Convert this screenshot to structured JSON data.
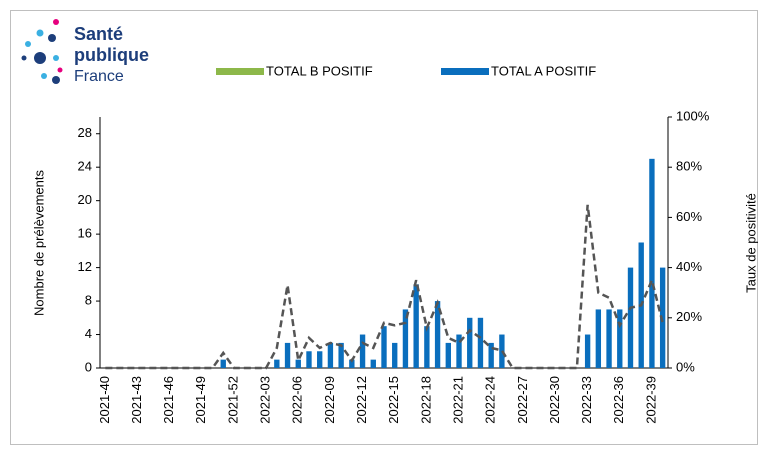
{
  "logo": {
    "line1": "Santé",
    "line2": "publique",
    "line3": "France"
  },
  "chart_data": {
    "type": "bar",
    "categories": [
      "2021-40",
      null,
      null,
      "2021-43",
      null,
      null,
      "2021-46",
      null,
      null,
      "2021-49",
      null,
      null,
      "2021-52",
      null,
      null,
      "2022-03",
      null,
      null,
      "2022-06",
      null,
      null,
      "2022-09",
      null,
      null,
      "2022-12",
      null,
      null,
      "2022-15",
      null,
      null,
      "2022-18",
      null,
      null,
      "2022-21",
      null,
      null,
      "2022-24",
      null,
      null,
      "2022-27",
      null,
      null,
      "2022-30",
      null,
      null,
      "2022-33",
      null,
      null,
      "2022-36",
      null,
      null,
      "2022-39",
      null
    ],
    "series": [
      {
        "name": "TOTAL B POSITIF",
        "color": "#8db84a",
        "values": [
          0,
          0,
          0,
          0,
          0,
          0,
          0,
          0,
          0,
          0,
          0,
          0,
          0,
          0,
          0,
          0,
          0,
          0,
          0,
          0,
          0,
          0,
          0,
          0,
          0,
          0,
          0,
          0,
          0,
          0,
          0,
          0,
          0,
          0,
          0,
          0,
          0,
          0,
          0,
          0,
          0,
          0,
          0,
          0,
          0,
          0,
          0,
          0,
          0,
          0,
          0,
          0,
          0
        ]
      },
      {
        "name": "TOTAL A POSITIF",
        "color": "#0a6ebd",
        "values": [
          0,
          0,
          0,
          0,
          0,
          0,
          0,
          0,
          0,
          0,
          0,
          1,
          0,
          0,
          0,
          0,
          1,
          3,
          1,
          2,
          2,
          3,
          3,
          1,
          4,
          1,
          5,
          3,
          7,
          10,
          5,
          8,
          3,
          4,
          6,
          6,
          3,
          4,
          0,
          0,
          0,
          0,
          0,
          0,
          0,
          4,
          7,
          7,
          7,
          12,
          15,
          25,
          12
        ]
      },
      {
        "type": "line",
        "axis": "y2",
        "color": "#555555",
        "values": [
          0,
          0,
          0,
          0,
          0,
          0,
          0,
          0,
          0,
          0,
          0,
          6,
          0,
          0,
          0,
          0,
          8,
          33,
          3,
          12,
          8,
          10,
          9,
          3,
          10,
          8,
          18,
          17,
          18,
          35,
          16,
          26,
          12,
          10,
          15,
          12,
          8,
          7,
          0,
          0,
          0,
          0,
          0,
          0,
          0,
          65,
          30,
          28,
          17,
          24,
          25,
          35,
          18
        ]
      }
    ],
    "ylabel": "Nombre de prélèvements",
    "y2label": "Taux de positivité",
    "ylim": [
      0,
      30
    ],
    "yticks": [
      0,
      4,
      8,
      12,
      16,
      20,
      24,
      28
    ],
    "y2lim": [
      0,
      100
    ],
    "y2ticks": [
      {
        "value": 0,
        "label": "0%"
      },
      {
        "value": 20,
        "label": "20%"
      },
      {
        "value": 40,
        "label": "40%"
      },
      {
        "value": 60,
        "label": "60%"
      },
      {
        "value": 80,
        "label": "80%"
      },
      {
        "value": 100,
        "label": "100%"
      }
    ]
  }
}
